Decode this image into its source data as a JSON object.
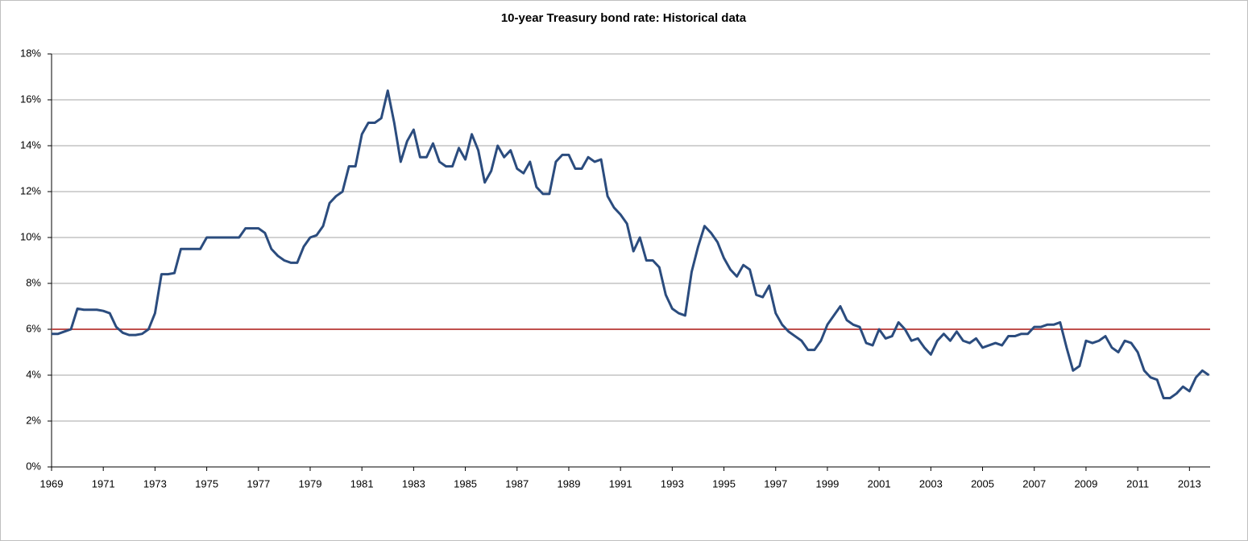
{
  "chart_data": {
    "type": "line",
    "title": "10-year Treasury bond rate: Historical data",
    "x": [
      1969,
      1969.25,
      1969.5,
      1969.75,
      1970,
      1970.25,
      1970.5,
      1970.75,
      1971,
      1971.25,
      1971.5,
      1971.75,
      1972,
      1972.25,
      1972.5,
      1972.75,
      1973,
      1973.25,
      1973.5,
      1973.75,
      1974,
      1974.25,
      1974.5,
      1974.75,
      1975,
      1975.25,
      1975.5,
      1975.75,
      1976,
      1976.25,
      1976.5,
      1976.75,
      1977,
      1977.25,
      1977.5,
      1977.75,
      1978,
      1978.25,
      1978.5,
      1978.75,
      1979,
      1979.25,
      1979.5,
      1979.75,
      1980,
      1980.25,
      1980.5,
      1980.75,
      1981,
      1981.25,
      1981.5,
      1981.75,
      1982,
      1982.25,
      1982.5,
      1982.75,
      1983,
      1983.25,
      1983.5,
      1983.75,
      1984,
      1984.25,
      1984.5,
      1984.75,
      1985,
      1985.25,
      1985.5,
      1985.75,
      1986,
      1986.25,
      1986.5,
      1986.75,
      1987,
      1987.25,
      1987.5,
      1987.75,
      1988,
      1988.25,
      1988.5,
      1988.75,
      1989,
      1989.25,
      1989.5,
      1989.75,
      1990,
      1990.25,
      1990.5,
      1990.75,
      1991,
      1991.25,
      1991.5,
      1991.75,
      1992,
      1992.25,
      1992.5,
      1992.75,
      1993,
      1993.25,
      1993.5,
      1993.75,
      1994,
      1994.25,
      1994.5,
      1994.75,
      1995,
      1995.25,
      1995.5,
      1995.75,
      1996,
      1996.25,
      1996.5,
      1996.75,
      1997,
      1997.25,
      1997.5,
      1997.75,
      1998,
      1998.25,
      1998.5,
      1998.75,
      1999,
      1999.25,
      1999.5,
      1999.75,
      2000,
      2000.25,
      2000.5,
      2000.75,
      2001,
      2001.25,
      2001.5,
      2001.75,
      2002,
      2002.25,
      2002.5,
      2002.75,
      2003,
      2003.25,
      2003.5,
      2003.75,
      2004,
      2004.25,
      2004.5,
      2004.75,
      2005,
      2005.25,
      2005.5,
      2005.75,
      2006,
      2006.25,
      2006.5,
      2006.75,
      2007,
      2007.25,
      2007.5,
      2007.75,
      2008,
      2008.25,
      2008.5,
      2008.75,
      2009,
      2009.25,
      2009.5,
      2009.75,
      2010,
      2010.25,
      2010.5,
      2010.75,
      2011,
      2011.25,
      2011.5,
      2011.75,
      2012,
      2012.25,
      2012.5,
      2012.75,
      2013,
      2013.25,
      2013.5,
      2013.75
    ],
    "series": [
      {
        "color": "#2b4c7e",
        "values": [
          5.8,
          5.8,
          5.9,
          6.0,
          6.9,
          6.85,
          6.85,
          6.85,
          6.8,
          6.7,
          6.1,
          5.85,
          5.75,
          5.75,
          5.8,
          6.0,
          6.7,
          8.4,
          8.4,
          8.45,
          9.5,
          9.5,
          9.5,
          9.5,
          10.0,
          10.0,
          10.0,
          10.0,
          10.0,
          10.0,
          10.4,
          10.4,
          10.4,
          10.2,
          9.5,
          9.2,
          9.0,
          8.9,
          8.9,
          9.6,
          10.0,
          10.1,
          10.5,
          11.5,
          11.8,
          12.0,
          13.1,
          13.1,
          14.5,
          15.0,
          15.0,
          15.2,
          16.4,
          15.0,
          13.3,
          14.2,
          14.7,
          13.5,
          13.5,
          14.1,
          13.3,
          13.1,
          13.1,
          13.9,
          13.4,
          14.5,
          13.8,
          12.4,
          12.9,
          14.0,
          13.5,
          13.8,
          13.0,
          12.8,
          13.3,
          12.2,
          11.9,
          11.9,
          13.3,
          13.6,
          13.6,
          13.0,
          13.0,
          13.5,
          13.3,
          13.4,
          11.8,
          11.3,
          11.0,
          10.6,
          9.4,
          10.0,
          9.0,
          9.0,
          8.7,
          7.5,
          6.9,
          6.7,
          6.6,
          8.5,
          9.6,
          10.5,
          10.2,
          9.8,
          9.1,
          8.6,
          8.3,
          8.8,
          8.6,
          7.5,
          7.4,
          7.9,
          6.7,
          6.2,
          5.9,
          5.7,
          5.5,
          5.1,
          5.1,
          5.5,
          6.2,
          6.6,
          7.0,
          6.4,
          6.2,
          6.1,
          5.4,
          5.3,
          6.0,
          5.6,
          5.7,
          6.3,
          6.0,
          5.5,
          5.6,
          5.2,
          4.9,
          5.5,
          5.8,
          5.5,
          5.9,
          5.5,
          5.4,
          5.6,
          5.2,
          5.3,
          5.4,
          5.3,
          5.7,
          5.7,
          5.8,
          5.8,
          6.1,
          6.1,
          6.2,
          6.2,
          6.3,
          5.2,
          4.2,
          4.4,
          5.5,
          5.4,
          5.5,
          5.7,
          5.2,
          5.0,
          5.5,
          5.4,
          5.0,
          4.2,
          3.9,
          3.8,
          3.0,
          3.0,
          3.2,
          3.5,
          3.3,
          3.9,
          4.2,
          4.0
        ]
      }
    ],
    "reference_line": {
      "value": 6,
      "color": "#c0504d"
    },
    "xlim": [
      1969,
      2013.8
    ],
    "xticks": [
      1969,
      1971,
      1973,
      1975,
      1977,
      1979,
      1981,
      1983,
      1985,
      1987,
      1989,
      1991,
      1993,
      1995,
      1997,
      1999,
      2001,
      2003,
      2005,
      2007,
      2009,
      2011,
      2013
    ],
    "ylim": [
      0,
      18
    ],
    "yticks": [
      {
        "value": 0,
        "label": "0%"
      },
      {
        "value": 2,
        "label": "2%"
      },
      {
        "value": 4,
        "label": "4%"
      },
      {
        "value": 6,
        "label": "6%"
      },
      {
        "value": 8,
        "label": "8%"
      },
      {
        "value": 10,
        "label": "10%"
      },
      {
        "value": 12,
        "label": "12%"
      },
      {
        "value": 14,
        "label": "14%"
      },
      {
        "value": 16,
        "label": "16%"
      },
      {
        "value": 18,
        "label": "18%"
      }
    ],
    "grid": true
  }
}
